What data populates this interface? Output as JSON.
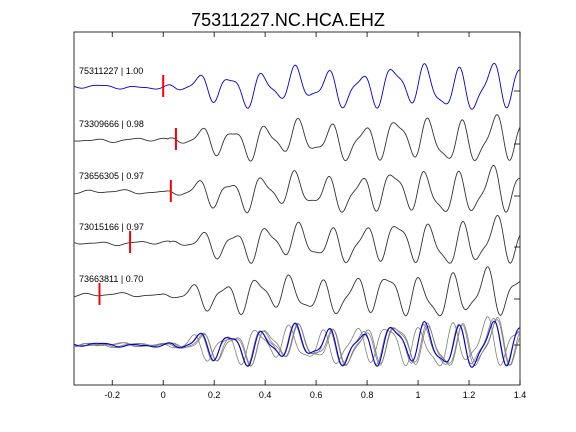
{
  "chart_data": {
    "type": "line",
    "title": "75311227.NC.HCA.EHZ",
    "xlabel": "",
    "ylabel": "",
    "xlim": [
      -0.35,
      1.4
    ],
    "xticks": [
      -0.2,
      0,
      0.2,
      0.4,
      0.6,
      0.8,
      1,
      1.2,
      1.4
    ],
    "xtick_labels": [
      "-0.2",
      "0",
      "0.2",
      "0.4",
      "0.6",
      "0.8",
      "1",
      "1.2",
      "1.4"
    ],
    "grid": false,
    "colors": {
      "reference": "#0000cc",
      "trace": "#333333",
      "pick": "#ff0000",
      "stack_trace": "#7f7f7f"
    },
    "traces": [
      {
        "label": "75311227 | 1.00",
        "event_id": "75311227",
        "correlation": 1.0,
        "pick_time": 0.0,
        "color": "#0000cc",
        "reference": true
      },
      {
        "label": "73309666 | 0.98",
        "event_id": "73309666",
        "correlation": 0.98,
        "pick_time": 0.05,
        "color": "#333333",
        "shift": 0.015
      },
      {
        "label": "73656305 | 0.97",
        "event_id": "73656305",
        "correlation": 0.97,
        "pick_time": 0.03,
        "color": "#333333",
        "shift": 0.005
      },
      {
        "label": "73015166 | 0.97",
        "event_id": "73015166",
        "correlation": 0.97,
        "pick_time": -0.13,
        "color": "#333333",
        "shift": 0.025
      },
      {
        "label": "73663811 | 0.70",
        "event_id": "73663811",
        "correlation": 0.7,
        "pick_time": -0.25,
        "color": "#333333",
        "shift": -0.01
      }
    ],
    "stack": {
      "description_visible": false
    }
  }
}
